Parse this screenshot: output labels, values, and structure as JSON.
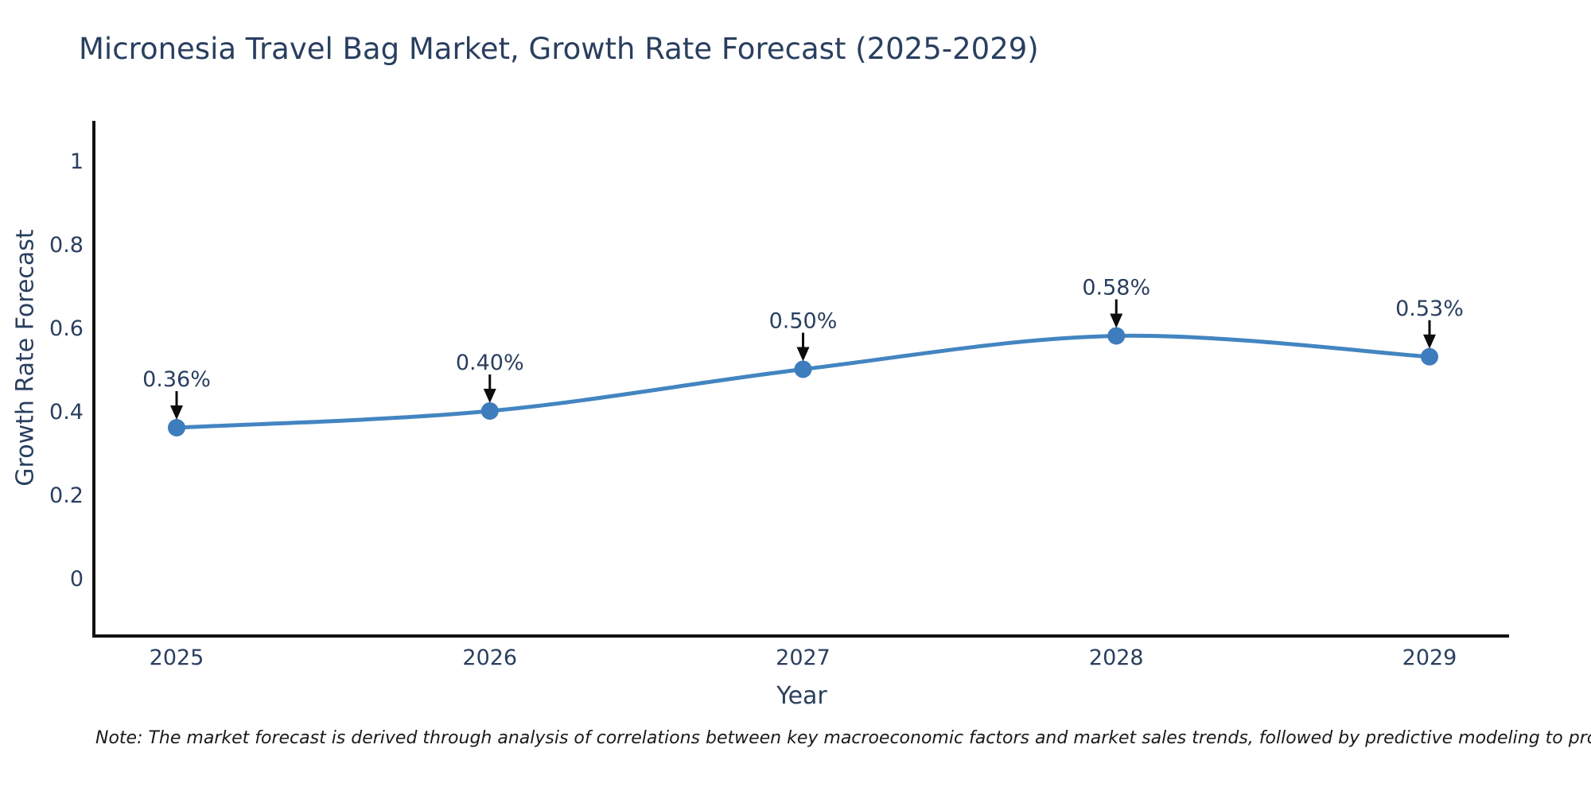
{
  "figure": {
    "title": "Micronesia Travel Bag Market, Growth Rate Forecast (2025-2029)",
    "note": "Note: The market forecast is derived through analysis of correlations between key macroeconomic factors and market sales trends, followed by predictive modeling to project future sales",
    "colors": {
      "background": "#ffffff",
      "title_text": "#2a3f5f",
      "tick_text": "#2a3f5f",
      "axis_title_text": "#2a3f5f",
      "annotation_text": "#2a3f5f",
      "axis_line": "#111111",
      "line": "#4385c1",
      "marker": "#3d7cbd",
      "arrow": "#0d0d0d",
      "note_text": "#1a1a1a"
    }
  },
  "chart_data": {
    "type": "line",
    "title": "Micronesia Travel Bag Market, Growth Rate Forecast (2025-2029)",
    "xlabel": "Year",
    "ylabel": "Growth Rate Forecast",
    "categories": [
      2025,
      2026,
      2027,
      2028,
      2029
    ],
    "values": [
      0.36,
      0.4,
      0.5,
      0.58,
      0.53
    ],
    "point_labels": [
      "0.36%",
      "0.40%",
      "0.50%",
      "0.58%",
      "0.53%"
    ],
    "yticks": [
      0,
      0.2,
      0.4,
      0.6,
      0.8,
      1
    ],
    "ylim": [
      -0.14,
      1.1
    ],
    "grid": false,
    "legend_position": "none",
    "line_shape": "spline",
    "annotation_style": "arrow-down-to-point"
  }
}
